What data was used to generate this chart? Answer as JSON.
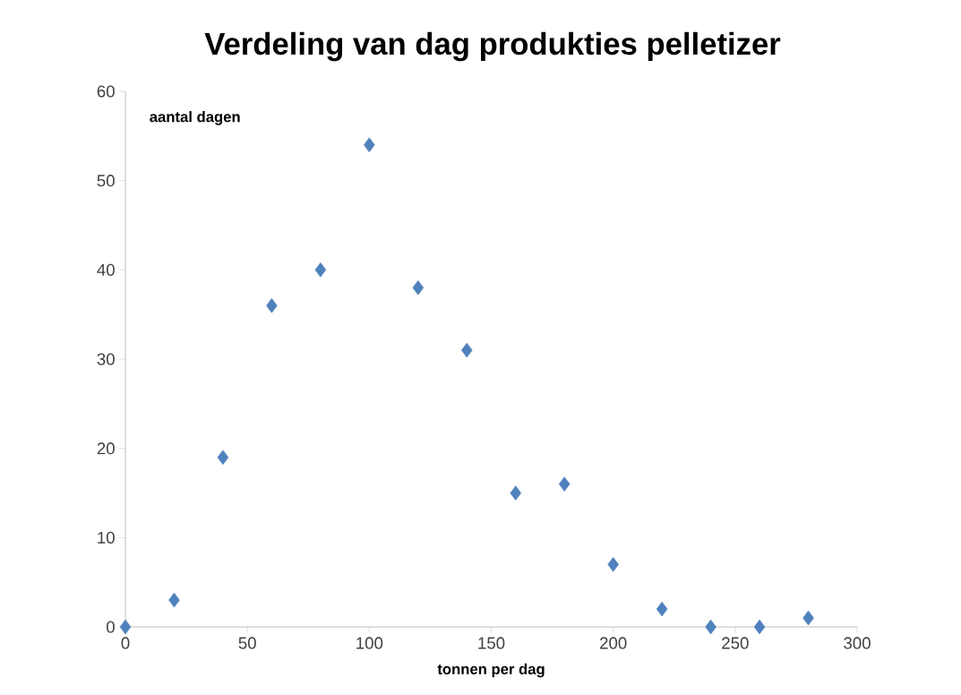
{
  "chart_data": {
    "type": "scatter",
    "title": "Verdeling van dag produkties pelletizer",
    "xlabel": "tonnen per dag",
    "ylabel": "aantal dagen",
    "x": [
      0,
      20,
      40,
      60,
      80,
      100,
      120,
      140,
      160,
      180,
      200,
      220,
      240,
      260,
      280
    ],
    "values": [
      0,
      3,
      19,
      36,
      40,
      54,
      38,
      31,
      15,
      16,
      7,
      2,
      0,
      0,
      1
    ],
    "color": "#4f81bd",
    "marker": "diamond",
    "xlim": [
      0,
      300
    ],
    "xticks": [
      0,
      50,
      100,
      150,
      200,
      250,
      300
    ],
    "ylim": [
      0,
      60
    ],
    "yticks": [
      0,
      10,
      20,
      30,
      40,
      50,
      60
    ],
    "grid": false
  }
}
